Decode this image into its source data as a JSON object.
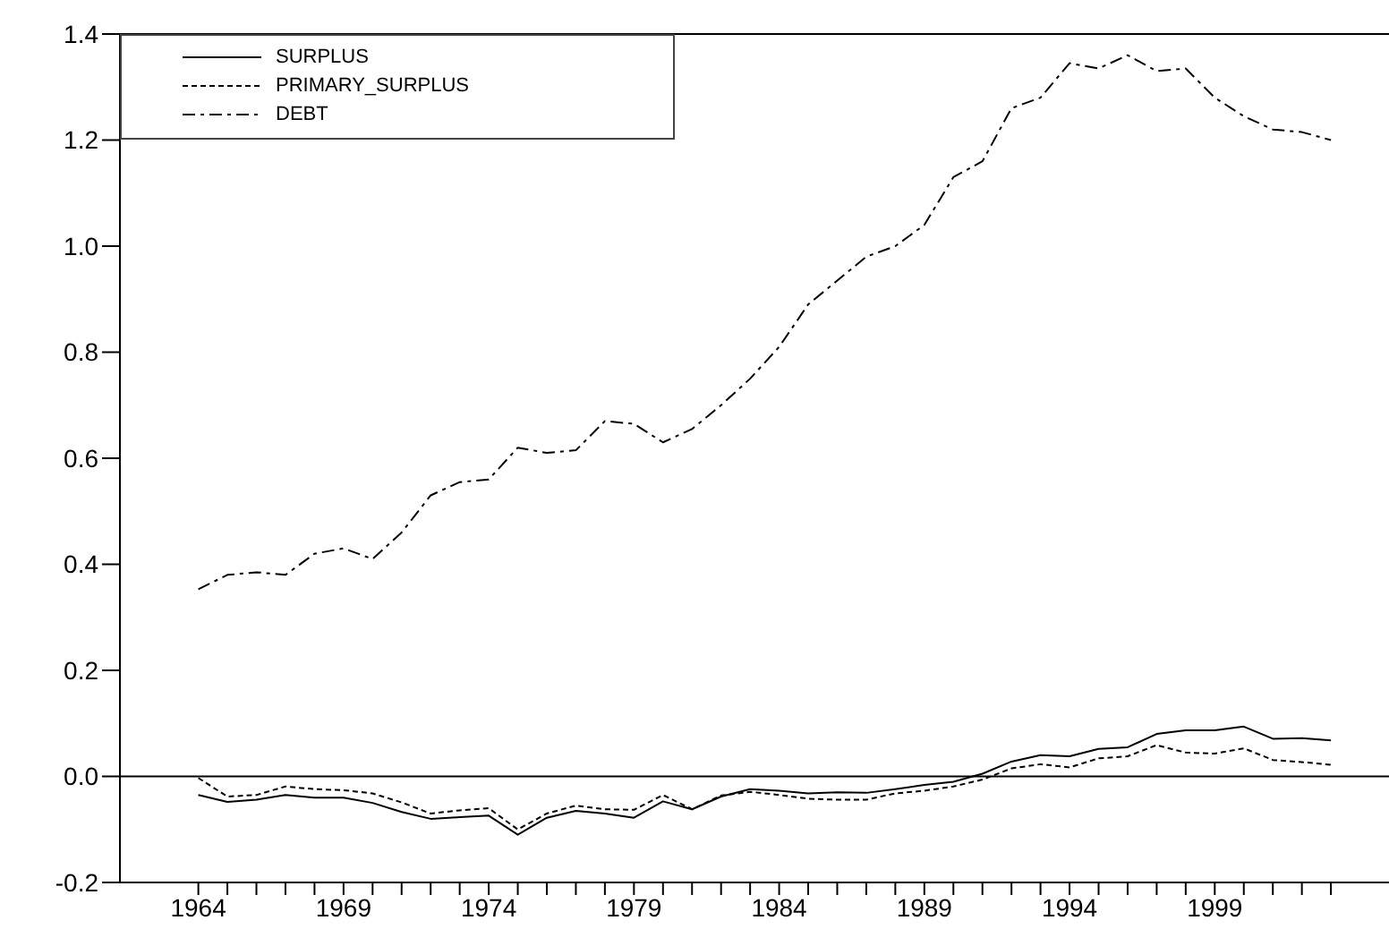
{
  "chart_data": {
    "type": "line",
    "legend": "top left",
    "marker": "none",
    "x": [
      1964,
      1965,
      1966,
      1967,
      1968,
      1969,
      1970,
      1971,
      1972,
      1973,
      1974,
      1975,
      1976,
      1977,
      1978,
      1979,
      1980,
      1981,
      1982,
      1983,
      1984,
      1985,
      1986,
      1987,
      1988,
      1989,
      1990,
      1991,
      1992,
      1993,
      1994,
      1995,
      1996,
      1997,
      1998,
      1999,
      2000,
      2001,
      2002,
      2003
    ],
    "xlim": [
      1961.3,
      2005
    ],
    "xticks": [
      1964,
      {
        "value": 1965,
        "label": null
      },
      {
        "value": 1966,
        "label": null
      },
      {
        "value": 1967,
        "label": null
      },
      {
        "value": 1968,
        "label": null
      },
      1969,
      {
        "value": 1970,
        "label": null
      },
      {
        "value": 1971,
        "label": null
      },
      {
        "value": 1972,
        "label": null
      },
      {
        "value": 1973,
        "label": null
      },
      1974,
      {
        "value": 1975,
        "label": null
      },
      {
        "value": 1976,
        "label": null
      },
      {
        "value": 1977,
        "label": null
      },
      {
        "value": 1978,
        "label": null
      },
      1979,
      {
        "value": 1980,
        "label": null
      },
      {
        "value": 1981,
        "label": null
      },
      {
        "value": 1982,
        "label": null
      },
      {
        "value": 1983,
        "label": null
      },
      1984,
      {
        "value": 1985,
        "label": null
      },
      {
        "value": 1986,
        "label": null
      },
      {
        "value": 1987,
        "label": null
      },
      {
        "value": 1988,
        "label": null
      },
      1989,
      {
        "value": 1990,
        "label": null
      },
      {
        "value": 1991,
        "label": null
      },
      {
        "value": 1992,
        "label": null
      },
      {
        "value": 1993,
        "label": null
      },
      1994,
      {
        "value": 1995,
        "label": null
      },
      {
        "value": 1996,
        "label": null
      },
      {
        "value": 1997,
        "label": null
      },
      {
        "value": 1998,
        "label": null
      },
      1999,
      {
        "value": 2000,
        "label": null
      },
      {
        "value": 2001,
        "label": null
      },
      {
        "value": 2002,
        "label": null
      },
      {
        "value": 2003,
        "label": null
      }
    ],
    "ylim": [
      -0.2,
      1.4
    ],
    "yticks": [
      -0.2,
      {
        "value": 0,
        "label": "0.0"
      },
      0.2,
      0.4,
      0.6,
      0.8,
      {
        "value": 1,
        "label": "1.0"
      },
      1.2,
      1.4
    ],
    "ref_lines": [
      {
        "axis": "y",
        "value": 0,
        "color": "#000000"
      }
    ],
    "series": [
      {
        "name": "SURPLUS",
        "color": "#000000",
        "line_style": "solid",
        "values": [
          -0.035,
          -0.048,
          -0.044,
          -0.035,
          -0.04,
          -0.04,
          -0.05,
          -0.067,
          -0.08,
          -0.077,
          -0.074,
          -0.11,
          -0.078,
          -0.065,
          -0.07,
          -0.078,
          -0.047,
          -0.062,
          -0.038,
          -0.024,
          -0.027,
          -0.032,
          -0.03,
          -0.031,
          -0.024,
          -0.016,
          -0.01,
          0.005,
          0.028,
          0.04,
          0.038,
          0.052,
          0.055,
          0.08,
          0.087,
          0.087,
          0.094,
          0.071,
          0.072,
          0.068
        ]
      },
      {
        "name": "PRIMARY_SURPLUS",
        "color": "#000000",
        "line_style": "dotted",
        "values": [
          -0.003,
          -0.038,
          -0.035,
          -0.019,
          -0.024,
          -0.026,
          -0.032,
          -0.049,
          -0.07,
          -0.064,
          -0.06,
          -0.1,
          -0.07,
          -0.055,
          -0.062,
          -0.063,
          -0.035,
          -0.062,
          -0.036,
          -0.029,
          -0.035,
          -0.042,
          -0.044,
          -0.044,
          -0.032,
          -0.027,
          -0.019,
          -0.006,
          0.015,
          0.023,
          0.017,
          0.034,
          0.038,
          0.059,
          0.045,
          0.043,
          0.053,
          0.031,
          0.027,
          0.022
        ]
      },
      {
        "name": "DEBT",
        "color": "#000000",
        "line_style": "dashed",
        "values": [
          0.353,
          0.38,
          0.385,
          0.38,
          0.42,
          0.43,
          0.41,
          0.46,
          0.53,
          0.555,
          0.56,
          0.62,
          0.61,
          0.615,
          0.67,
          0.665,
          0.63,
          0.655,
          0.7,
          0.75,
          0.81,
          0.89,
          0.935,
          0.98,
          1.0,
          1.04,
          1.13,
          1.16,
          1.26,
          1.28,
          1.345,
          1.335,
          1.36,
          1.33,
          1.335,
          1.28,
          1.245,
          1.22,
          1.215,
          1.2
        ]
      }
    ]
  }
}
